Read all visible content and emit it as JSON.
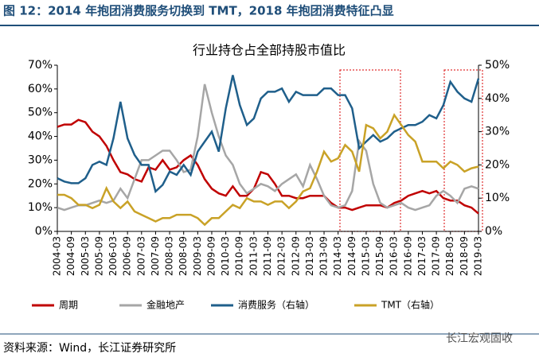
{
  "header": "图 12：2014 年抱团消费服务切换到 TMT，2018 年抱团消费特征凸显",
  "source": "资料来源：Wind，长江证券研究所",
  "watermark": "长江宏观固收",
  "chart_data": {
    "type": "line",
    "title": "行业持仓占全部持股市值比",
    "categories": [
      "2004-03",
      null,
      "2004-09",
      null,
      "2005-03",
      null,
      "2005-09",
      null,
      "2006-03",
      null,
      "2006-09",
      null,
      "2007-03",
      null,
      "2007-09",
      null,
      "2008-03",
      null,
      "2008-09",
      null,
      "2009-03",
      null,
      "2009-09",
      null,
      "2010-03",
      null,
      "2010-09",
      null,
      "2011-03",
      null,
      "2011-09",
      null,
      "2012-03",
      null,
      "2012-09",
      null,
      "2013-03",
      null,
      "2013-09",
      null,
      "2014-03",
      null,
      "2014-09",
      null,
      "2015-03",
      null,
      "2015-09",
      null,
      "2016-03",
      null,
      "2016-09",
      null,
      "2017-03",
      null,
      "2017-09",
      null,
      "2018-03",
      null,
      "2018-09",
      null,
      "2019-03"
    ],
    "ylim": [
      0,
      70
    ],
    "yticks": [
      {
        "value": 0,
        "label": "0%"
      },
      {
        "value": 10,
        "label": "10%"
      },
      {
        "value": 20,
        "label": "20%"
      },
      {
        "value": 30,
        "label": "30%"
      },
      {
        "value": 40,
        "label": "40%"
      },
      {
        "value": 50,
        "label": "50%"
      },
      {
        "value": 60,
        "label": "60%"
      },
      {
        "value": 70,
        "label": "70%"
      }
    ],
    "y2lim": [
      0,
      50
    ],
    "y2ticks": [
      {
        "value": 0,
        "label": "0%"
      },
      {
        "value": 10,
        "label": "10%"
      },
      {
        "value": 20,
        "label": "20%"
      },
      {
        "value": 30,
        "label": "30%"
      },
      {
        "value": 40,
        "label": "40%"
      },
      {
        "value": 50,
        "label": "50%"
      }
    ],
    "series": [
      {
        "name": "周期",
        "color": "#c00000",
        "values": [
          44,
          45,
          45,
          47,
          46,
          42,
          40,
          36,
          30,
          25,
          24,
          22,
          21,
          27,
          26,
          30,
          26,
          27,
          30,
          32,
          28,
          22,
          18,
          16,
          15,
          19,
          15,
          15,
          18,
          25,
          24,
          20,
          15,
          15,
          14,
          14,
          15,
          15,
          15,
          12,
          10,
          10,
          9,
          10,
          11,
          11,
          11,
          10,
          12,
          13,
          15,
          16,
          17,
          16,
          17,
          14,
          13,
          13,
          11,
          10,
          7.5
        ]
      },
      {
        "name": "金融地产",
        "color": "#a6a6a6",
        "values": [
          10,
          9,
          10,
          11,
          11,
          12,
          13,
          12,
          13,
          18,
          14,
          22,
          30,
          30,
          32,
          34,
          34,
          30,
          25,
          26,
          40,
          62,
          50,
          40,
          32,
          28,
          20,
          16,
          18,
          20,
          19,
          17,
          20,
          22,
          24,
          19,
          28,
          22,
          15,
          11,
          10,
          11,
          17,
          38,
          34,
          20,
          12,
          10,
          11,
          12,
          10,
          9,
          10,
          11,
          15,
          17,
          15,
          12,
          18,
          19,
          18
        ]
      },
      {
        "name": "消费服务（右轴）",
        "color": "#1f5f8b",
        "axis": "y2",
        "values": [
          16,
          15,
          14.5,
          14.5,
          16,
          20,
          21,
          20,
          28,
          39,
          28,
          23,
          20,
          20,
          12,
          14,
          18,
          17,
          20,
          17,
          24,
          27,
          30,
          24,
          37,
          47,
          38,
          32,
          34,
          40,
          42,
          42,
          43,
          39,
          42,
          41,
          41,
          41,
          43,
          43,
          41,
          41,
          37,
          25,
          27,
          29,
          27,
          28,
          30,
          31,
          32,
          32,
          33,
          35,
          34,
          38,
          45,
          42,
          40,
          39,
          46
        ]
      },
      {
        "name": "TMT（右轴）",
        "color": "#c9a227",
        "axis": "y2",
        "values": [
          11,
          11,
          10,
          8,
          8,
          7,
          8,
          13,
          9,
          7,
          9,
          6,
          5,
          4,
          3,
          4,
          4,
          5,
          5,
          5,
          4,
          2,
          4,
          4,
          6,
          8,
          7,
          10,
          9,
          9,
          8,
          9,
          9,
          7,
          9,
          12,
          13,
          18,
          24,
          21,
          22,
          26,
          24,
          18,
          32,
          31,
          28,
          30,
          35,
          32,
          29,
          27,
          21,
          21,
          21,
          19,
          21,
          20,
          18,
          19,
          19.5
        ]
      }
    ]
  }
}
